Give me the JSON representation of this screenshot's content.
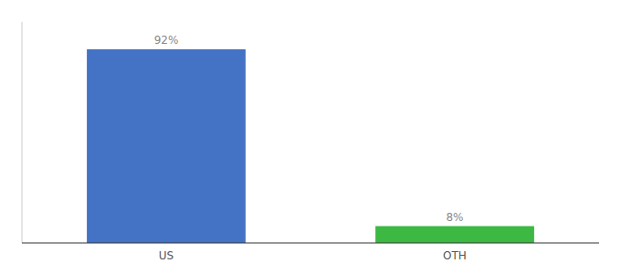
{
  "chart_data": {
    "type": "bar",
    "categories": [
      "US",
      "OTH"
    ],
    "values": [
      92,
      8
    ],
    "value_labels": [
      "92%",
      "8%"
    ],
    "colors": [
      "#4472c4",
      "#3cb843"
    ],
    "ylim": [
      0,
      105
    ],
    "data_labels": true,
    "tick_labels": "x",
    "grid": false
  }
}
